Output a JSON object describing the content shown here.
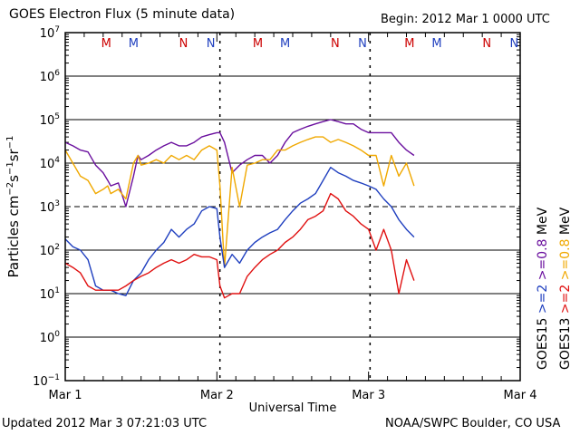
{
  "header": {
    "title": "GOES Electron Flux (5 minute data)",
    "begin": "Begin: 2012 Mar 1 0000 UTC"
  },
  "footer": {
    "updated": "Updated 2012 Mar  3 07:21:03 UTC",
    "credit": "NOAA/SWPC Boulder, CO USA"
  },
  "chart_data": {
    "type": "line",
    "title": "GOES Electron Flux (5 minute data)",
    "xlabel": "Universal Time",
    "ylabel": "Particles cm^-2 s^-1 sr^-1",
    "x_unit": "days since 2012 Mar 1 0000 UTC",
    "xlim": [
      0,
      3
    ],
    "ylim_log10": [
      -1,
      7
    ],
    "y_scale": "log",
    "x_tick_labels": [
      "Mar 1",
      "Mar 2",
      "Mar 3",
      "Mar 4"
    ],
    "y_tick_exponents": [
      -1,
      0,
      1,
      2,
      3,
      4,
      5,
      6,
      7
    ],
    "threshold_line_log10": 3,
    "grid": true,
    "day_markers": [
      {
        "label": "M",
        "x": 0.27,
        "color": "#cc0000"
      },
      {
        "label": "M",
        "x": 0.45,
        "color": "#1f3fbf"
      },
      {
        "label": "N",
        "x": 0.78,
        "color": "#cc0000"
      },
      {
        "label": "N",
        "x": 0.96,
        "color": "#1f3fbf"
      },
      {
        "label": "M",
        "x": 1.27,
        "color": "#cc0000"
      },
      {
        "label": "M",
        "x": 1.45,
        "color": "#1f3fbf"
      },
      {
        "label": "N",
        "x": 1.78,
        "color": "#cc0000"
      },
      {
        "label": "N",
        "x": 1.96,
        "color": "#1f3fbf"
      },
      {
        "label": "M",
        "x": 2.27,
        "color": "#cc0000"
      },
      {
        "label": "M",
        "x": 2.45,
        "color": "#1f3fbf"
      },
      {
        "label": "N",
        "x": 2.78,
        "color": "#cc0000"
      },
      {
        "label": "N",
        "x": 2.96,
        "color": "#1f3fbf"
      }
    ],
    "dashed_time_markers": [
      1.02,
      2.01
    ],
    "right_labels": [
      {
        "text": "GOES15",
        "color": "#000000"
      },
      {
        "text": ">=2",
        "color": "#1f3fbf"
      },
      {
        "text": ">=0.8",
        "color": "#6a0f9e"
      },
      {
        "text": "GOES13",
        "color": "#000000"
      },
      {
        "text": ">=2",
        "color": "#e01010"
      },
      {
        "text": ">=0.8",
        "color": "#f0a800"
      },
      {
        "text": "MeV",
        "color": "#000000"
      }
    ],
    "series": [
      {
        "name": "GOES15 >=0.8 MeV",
        "color": "#6a0f9e",
        "x": [
          0.0,
          0.05,
          0.1,
          0.15,
          0.2,
          0.25,
          0.28,
          0.3,
          0.35,
          0.4,
          0.45,
          0.48,
          0.5,
          0.55,
          0.6,
          0.65,
          0.7,
          0.75,
          0.8,
          0.85,
          0.9,
          0.95,
          1.0,
          1.02,
          1.05,
          1.1,
          1.15,
          1.2,
          1.25,
          1.3,
          1.35,
          1.4,
          1.45,
          1.5,
          1.55,
          1.6,
          1.65,
          1.7,
          1.75,
          1.8,
          1.85,
          1.9,
          1.95,
          2.0,
          2.05,
          2.1,
          2.15,
          2.2,
          2.25,
          2.3
        ],
        "values": [
          30000,
          25000,
          20000,
          18000,
          9000,
          6000,
          4000,
          3000,
          3500,
          1000,
          5000,
          15000,
          12000,
          15000,
          20000,
          25000,
          30000,
          25000,
          25000,
          30000,
          40000,
          45000,
          50000,
          50000,
          30000,
          6000,
          9000,
          12000,
          15000,
          15000,
          10000,
          15000,
          30000,
          50000,
          60000,
          70000,
          80000,
          90000,
          100000,
          90000,
          80000,
          80000,
          60000,
          50000,
          50000,
          50000,
          50000,
          30000,
          20000,
          15000
        ]
      },
      {
        "name": "GOES13 >=0.8 MeV",
        "color": "#f0a800",
        "x": [
          0.0,
          0.05,
          0.1,
          0.15,
          0.2,
          0.25,
          0.28,
          0.3,
          0.35,
          0.4,
          0.45,
          0.48,
          0.5,
          0.55,
          0.6,
          0.65,
          0.7,
          0.75,
          0.8,
          0.85,
          0.9,
          0.95,
          1.0,
          1.02,
          1.05,
          1.1,
          1.15,
          1.2,
          1.25,
          1.3,
          1.35,
          1.4,
          1.45,
          1.5,
          1.55,
          1.6,
          1.65,
          1.7,
          1.75,
          1.8,
          1.85,
          1.9,
          1.95,
          2.0,
          2.05,
          2.1,
          2.15,
          2.2,
          2.25,
          2.3
        ],
        "values": [
          20000,
          10000,
          5000,
          4000,
          2000,
          2500,
          3000,
          2000,
          2500,
          1500,
          10000,
          15000,
          9000,
          10000,
          12000,
          10000,
          15000,
          12000,
          15000,
          12000,
          20000,
          25000,
          20000,
          3000,
          40,
          8000,
          1000,
          9000,
          10000,
          12000,
          12000,
          20000,
          20000,
          25000,
          30000,
          35000,
          40000,
          40000,
          30000,
          35000,
          30000,
          25000,
          20000,
          15000,
          15000,
          3000,
          15000,
          5000,
          10000,
          3000
        ]
      },
      {
        "name": "GOES15 >=2 MeV",
        "color": "#1f3fbf",
        "x": [
          0.0,
          0.05,
          0.1,
          0.15,
          0.2,
          0.25,
          0.3,
          0.35,
          0.4,
          0.45,
          0.5,
          0.55,
          0.6,
          0.65,
          0.7,
          0.75,
          0.8,
          0.85,
          0.9,
          0.95,
          1.0,
          1.02,
          1.05,
          1.1,
          1.15,
          1.2,
          1.25,
          1.3,
          1.35,
          1.4,
          1.45,
          1.5,
          1.55,
          1.6,
          1.65,
          1.7,
          1.75,
          1.8,
          1.85,
          1.9,
          1.95,
          2.0,
          2.05,
          2.1,
          2.15,
          2.2,
          2.25,
          2.3
        ],
        "values": [
          180,
          120,
          100,
          60,
          15,
          12,
          12,
          10,
          9,
          20,
          30,
          60,
          100,
          150,
          300,
          200,
          300,
          400,
          800,
          1000,
          900,
          200,
          40,
          80,
          50,
          100,
          150,
          200,
          250,
          300,
          500,
          800,
          1200,
          1500,
          2000,
          4000,
          8000,
          6000,
          5000,
          4000,
          3500,
          3000,
          2500,
          1500,
          1000,
          500,
          300,
          200
        ]
      },
      {
        "name": "GOES13 >=2 MeV",
        "color": "#e01010",
        "x": [
          0.0,
          0.05,
          0.1,
          0.15,
          0.2,
          0.25,
          0.3,
          0.35,
          0.4,
          0.45,
          0.5,
          0.55,
          0.6,
          0.65,
          0.7,
          0.75,
          0.8,
          0.85,
          0.9,
          0.95,
          1.0,
          1.02,
          1.05,
          1.1,
          1.15,
          1.2,
          1.25,
          1.3,
          1.35,
          1.4,
          1.45,
          1.5,
          1.55,
          1.6,
          1.65,
          1.7,
          1.75,
          1.8,
          1.85,
          1.9,
          1.95,
          2.0,
          2.05,
          2.1,
          2.15,
          2.2,
          2.25,
          2.3
        ],
        "values": [
          50,
          40,
          30,
          15,
          12,
          12,
          12,
          12,
          15,
          20,
          25,
          30,
          40,
          50,
          60,
          50,
          60,
          80,
          70,
          70,
          60,
          15,
          8,
          10,
          10,
          25,
          40,
          60,
          80,
          100,
          150,
          200,
          300,
          500,
          600,
          800,
          2000,
          1500,
          800,
          600,
          400,
          300,
          100,
          300,
          100,
          10,
          60,
          20
        ]
      }
    ]
  }
}
